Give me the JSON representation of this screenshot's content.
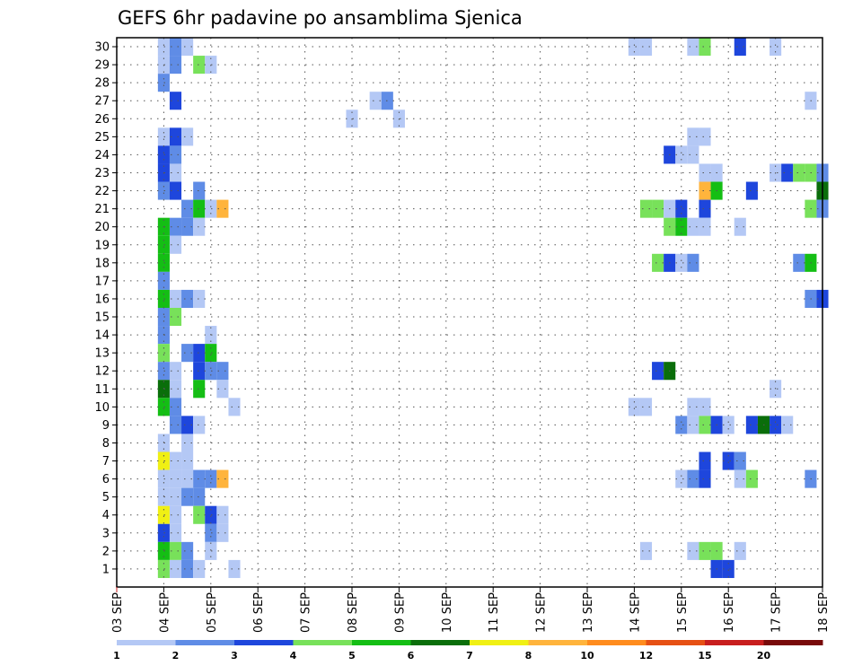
{
  "chart_data": {
    "type": "heatmap",
    "title": "GEFS 6hr padavine po ansamblima Sjenica",
    "y_ticks": [
      "1",
      "2",
      "3",
      "4",
      "5",
      "6",
      "7",
      "8",
      "9",
      "10",
      "11",
      "12",
      "13",
      "14",
      "15",
      "16",
      "17",
      "18",
      "19",
      "20",
      "21",
      "22",
      "23",
      "24",
      "25",
      "26",
      "27",
      "28",
      "29",
      "30"
    ],
    "x_ticks": [
      "03 SEP",
      "04 SEP",
      "05 SEP",
      "06 SEP",
      "07 SEP",
      "08 SEP",
      "09 SEP",
      "10 SEP",
      "11 SEP",
      "12 SEP",
      "13 SEP",
      "14 SEP",
      "15 SEP",
      "16 SEP",
      "17 SEP",
      "18 SEP"
    ],
    "x_range_days": [
      3,
      18
    ],
    "step_hours": 6,
    "grid": true,
    "color_scale": {
      "levels": [
        "1",
        "2",
        "3",
        "4",
        "5",
        "6",
        "7",
        "8",
        "10",
        "12",
        "15",
        "20"
      ],
      "colors": [
        "#b4c8f5",
        "#5f8ce6",
        "#1e46dc",
        "#78e15a",
        "#14be14",
        "#0a6e0a",
        "#f0f014",
        "#ffb43c",
        "#ff8c1e",
        "#e65014",
        "#c81e1e",
        "#780a0a"
      ]
    },
    "cells": [
      [
        30,
        4.0,
        1
      ],
      [
        30,
        4.25,
        2
      ],
      [
        30,
        4.5,
        1
      ],
      [
        30,
        14.0,
        1
      ],
      [
        30,
        14.25,
        1
      ],
      [
        30,
        15.25,
        1
      ],
      [
        30,
        15.5,
        4
      ],
      [
        30,
        16.25,
        3
      ],
      [
        30,
        17.0,
        1
      ],
      [
        29,
        4.0,
        1
      ],
      [
        29,
        4.25,
        2
      ],
      [
        29,
        4.75,
        4
      ],
      [
        29,
        5.0,
        1
      ],
      [
        28,
        4.0,
        2
      ],
      [
        27,
        4.25,
        3
      ],
      [
        27,
        8.5,
        1
      ],
      [
        27,
        8.75,
        2
      ],
      [
        27,
        17.75,
        1
      ],
      [
        26,
        8.0,
        1
      ],
      [
        26,
        9.0,
        1
      ],
      [
        25,
        4.0,
        1
      ],
      [
        25,
        4.25,
        3
      ],
      [
        25,
        4.5,
        1
      ],
      [
        25,
        15.25,
        1
      ],
      [
        25,
        15.5,
        1
      ],
      [
        24,
        4.0,
        3
      ],
      [
        24,
        4.25,
        2
      ],
      [
        24,
        14.75,
        3
      ],
      [
        24,
        15.0,
        1
      ],
      [
        24,
        15.25,
        1
      ],
      [
        23,
        4.0,
        3
      ],
      [
        23,
        4.25,
        1
      ],
      [
        23,
        15.5,
        1
      ],
      [
        23,
        15.75,
        1
      ],
      [
        23,
        17.0,
        1
      ],
      [
        23,
        17.25,
        3
      ],
      [
        23,
        17.5,
        4
      ],
      [
        23,
        17.75,
        4
      ],
      [
        23,
        18.0,
        2
      ],
      [
        22,
        4.0,
        2
      ],
      [
        22,
        4.25,
        3
      ],
      [
        22,
        4.75,
        2
      ],
      [
        22,
        15.5,
        8
      ],
      [
        22,
        15.75,
        5
      ],
      [
        22,
        16.5,
        3
      ],
      [
        22,
        18.0,
        6
      ],
      [
        21,
        4.5,
        2
      ],
      [
        21,
        4.75,
        5
      ],
      [
        21,
        5.0,
        1
      ],
      [
        21,
        5.25,
        8
      ],
      [
        21,
        14.25,
        4
      ],
      [
        21,
        14.5,
        4
      ],
      [
        21,
        14.75,
        1
      ],
      [
        21,
        15.0,
        3
      ],
      [
        21,
        15.5,
        3
      ],
      [
        21,
        17.75,
        4
      ],
      [
        21,
        18.0,
        2
      ],
      [
        20,
        4.0,
        5
      ],
      [
        20,
        4.25,
        2
      ],
      [
        20,
        4.5,
        2
      ],
      [
        20,
        4.75,
        1
      ],
      [
        20,
        14.75,
        4
      ],
      [
        20,
        15.0,
        5
      ],
      [
        20,
        15.25,
        1
      ],
      [
        20,
        15.5,
        1
      ],
      [
        20,
        16.25,
        1
      ],
      [
        19,
        4.0,
        5
      ],
      [
        19,
        4.25,
        1
      ],
      [
        18,
        4.0,
        5
      ],
      [
        18,
        14.5,
        4
      ],
      [
        18,
        14.75,
        3
      ],
      [
        18,
        15.0,
        1
      ],
      [
        18,
        15.25,
        2
      ],
      [
        18,
        17.5,
        2
      ],
      [
        18,
        17.75,
        5
      ],
      [
        17,
        4.0,
        2
      ],
      [
        16,
        4.0,
        5
      ],
      [
        16,
        4.25,
        1
      ],
      [
        16,
        4.5,
        2
      ],
      [
        16,
        4.75,
        1
      ],
      [
        16,
        17.75,
        2
      ],
      [
        16,
        18.0,
        3
      ],
      [
        15,
        4.0,
        2
      ],
      [
        15,
        4.25,
        4
      ],
      [
        14,
        4.0,
        2
      ],
      [
        14,
        5.0,
        1
      ],
      [
        13,
        4.0,
        4
      ],
      [
        13,
        4.5,
        2
      ],
      [
        13,
        4.75,
        3
      ],
      [
        13,
        5.0,
        5
      ],
      [
        12,
        4.0,
        2
      ],
      [
        12,
        4.25,
        1
      ],
      [
        12,
        4.75,
        3
      ],
      [
        12,
        5.0,
        2
      ],
      [
        12,
        5.25,
        2
      ],
      [
        12,
        14.5,
        3
      ],
      [
        12,
        14.75,
        6
      ],
      [
        11,
        4.0,
        6
      ],
      [
        11,
        4.25,
        1
      ],
      [
        11,
        4.75,
        5
      ],
      [
        11,
        5.25,
        1
      ],
      [
        11,
        17.0,
        1
      ],
      [
        10,
        4.0,
        5
      ],
      [
        10,
        4.25,
        2
      ],
      [
        10,
        5.5,
        1
      ],
      [
        10,
        14.0,
        1
      ],
      [
        10,
        14.25,
        1
      ],
      [
        10,
        15.25,
        1
      ],
      [
        10,
        15.5,
        1
      ],
      [
        9,
        4.25,
        2
      ],
      [
        9,
        4.5,
        3
      ],
      [
        9,
        4.75,
        1
      ],
      [
        9,
        15.0,
        2
      ],
      [
        9,
        15.25,
        1
      ],
      [
        9,
        15.5,
        4
      ],
      [
        9,
        15.75,
        3
      ],
      [
        9,
        16.0,
        1
      ],
      [
        9,
        16.5,
        3
      ],
      [
        9,
        16.75,
        6
      ],
      [
        9,
        17.0,
        3
      ],
      [
        9,
        17.25,
        1
      ],
      [
        8,
        4.0,
        1
      ],
      [
        8,
        4.5,
        1
      ],
      [
        7,
        4.0,
        7
      ],
      [
        7,
        4.25,
        1
      ],
      [
        7,
        4.5,
        1
      ],
      [
        7,
        15.5,
        3
      ],
      [
        7,
        16.0,
        3
      ],
      [
        7,
        16.25,
        2
      ],
      [
        6,
        4.0,
        1
      ],
      [
        6,
        4.25,
        1
      ],
      [
        6,
        4.5,
        1
      ],
      [
        6,
        4.75,
        2
      ],
      [
        6,
        5.0,
        2
      ],
      [
        6,
        5.25,
        8
      ],
      [
        6,
        15.0,
        1
      ],
      [
        6,
        15.25,
        2
      ],
      [
        6,
        15.5,
        3
      ],
      [
        6,
        16.25,
        1
      ],
      [
        6,
        16.5,
        4
      ],
      [
        6,
        17.75,
        2
      ],
      [
        5,
        4.0,
        1
      ],
      [
        5,
        4.25,
        1
      ],
      [
        5,
        4.5,
        2
      ],
      [
        5,
        4.75,
        2
      ],
      [
        4,
        4.0,
        7
      ],
      [
        4,
        4.25,
        1
      ],
      [
        4,
        4.75,
        4
      ],
      [
        4,
        5.0,
        3
      ],
      [
        4,
        5.25,
        1
      ],
      [
        3,
        4.0,
        3
      ],
      [
        3,
        4.25,
        1
      ],
      [
        3,
        5.0,
        2
      ],
      [
        3,
        5.25,
        1
      ],
      [
        2,
        4.0,
        5
      ],
      [
        2,
        4.25,
        4
      ],
      [
        2,
        4.5,
        2
      ],
      [
        2,
        5.0,
        1
      ],
      [
        2,
        14.25,
        1
      ],
      [
        2,
        15.25,
        1
      ],
      [
        2,
        15.5,
        4
      ],
      [
        2,
        15.75,
        4
      ],
      [
        2,
        16.25,
        1
      ],
      [
        1,
        4.0,
        4
      ],
      [
        1,
        4.25,
        1
      ],
      [
        1,
        4.5,
        2
      ],
      [
        1,
        4.75,
        1
      ],
      [
        1,
        5.5,
        1
      ],
      [
        1,
        15.75,
        3
      ],
      [
        1,
        16.0,
        3
      ]
    ]
  }
}
